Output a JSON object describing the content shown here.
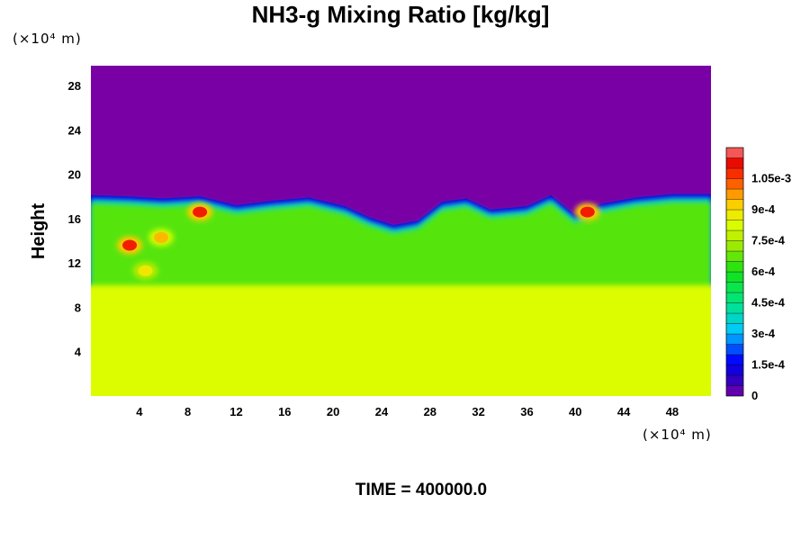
{
  "chart_data": {
    "type": "heatmap",
    "title": "NH3-g Mixing Ratio [kg/kg]",
    "xlabel": "",
    "ylabel": "Height",
    "x_unit_label": "(×10⁴ m)",
    "y_unit_label": "(×10⁴ m)",
    "x_ticks": [
      "4",
      "8",
      "12",
      "16",
      "20",
      "24",
      "28",
      "32",
      "36",
      "40",
      "44",
      "48"
    ],
    "x_tick_values": [
      4,
      8,
      12,
      16,
      20,
      24,
      28,
      32,
      36,
      40,
      44,
      48
    ],
    "y_ticks": [
      "4",
      "8",
      "12",
      "16",
      "20",
      "24",
      "28"
    ],
    "y_tick_values": [
      4,
      8,
      12,
      16,
      20,
      24,
      28
    ],
    "xlim": [
      0,
      51.2
    ],
    "ylim": [
      0,
      29.8
    ],
    "colorbar": {
      "labels": [
        "0",
        "1.5e-4",
        "3e-4",
        "4.5e-4",
        "6e-4",
        "7.5e-4",
        "9e-4",
        "1.05e-3"
      ],
      "values": [
        0,
        0.00015,
        0.0003,
        0.00045,
        0.0006,
        0.00075,
        0.0009,
        0.00105
      ],
      "range": [
        0,
        0.0012
      ]
    },
    "regions": {
      "upper_value": 0,
      "cloud_top_height": [
        [
          0,
          18.2
        ],
        [
          3,
          18.1
        ],
        [
          6,
          17.9
        ],
        [
          9,
          18.1
        ],
        [
          12,
          17.3
        ],
        [
          15,
          17.7
        ],
        [
          18,
          18.0
        ],
        [
          21,
          17.2
        ],
        [
          23,
          16.2
        ],
        [
          25,
          15.5
        ],
        [
          27,
          15.9
        ],
        [
          29,
          17.6
        ],
        [
          31,
          17.9
        ],
        [
          33,
          16.9
        ],
        [
          36,
          17.2
        ],
        [
          38,
          18.2
        ],
        [
          40,
          16.4
        ],
        [
          42,
          17.4
        ],
        [
          45,
          18.0
        ],
        [
          48,
          18.3
        ],
        [
          51.2,
          18.3
        ]
      ],
      "lower_layer_top": 10,
      "lower_value": 0.00083,
      "mixed_layer_value": 0.00066,
      "high_value_cells": [
        {
          "x": 3.2,
          "y": 13.6,
          "value": 0.0011
        },
        {
          "x": 5.8,
          "y": 14.3,
          "value": 0.00095
        },
        {
          "x": 9.0,
          "y": 16.6,
          "value": 0.0011
        },
        {
          "x": 41.0,
          "y": 16.6,
          "value": 0.0011
        },
        {
          "x": 4.5,
          "y": 11.3,
          "value": 0.00088
        }
      ]
    }
  },
  "footer": {
    "time_label": "TIME = 400000.0"
  }
}
